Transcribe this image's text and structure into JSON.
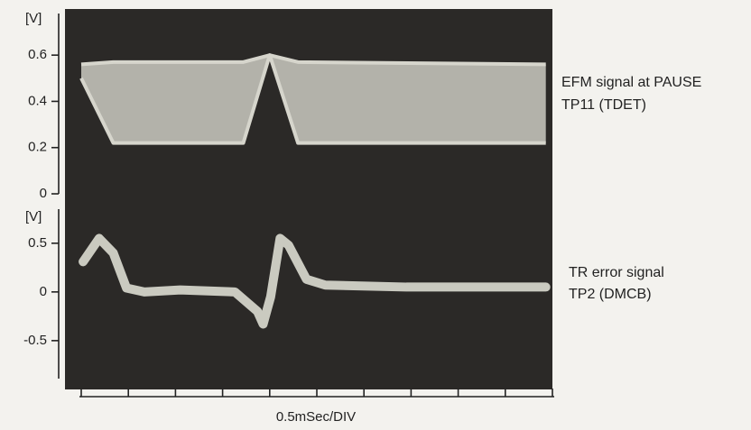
{
  "chart_data": [
    {
      "type": "band",
      "y_unit": "[V]",
      "annotations": [
        "EFM signal at PAUSE",
        "TP11 (TDET)"
      ],
      "xlim": [
        0,
        5
      ],
      "ylim": [
        0,
        0.78
      ],
      "yticks": [
        0,
        0.2,
        0.4,
        0.6
      ],
      "x": [
        0,
        0.34,
        1.72,
        2.0,
        2.3,
        4.93
      ],
      "series": [
        {
          "color": "#d6d5cc",
          "values": [
            0.56,
            0.57,
            0.57,
            0.6,
            0.57,
            0.56
          ]
        },
        {
          "color": "#d6d5cc",
          "values": [
            0.5,
            0.22,
            0.22,
            0.6,
            0.22,
            0.22
          ]
        }
      ]
    },
    {
      "type": "line",
      "y_unit": "[V]",
      "annotations": [
        "TR error signal",
        "TP2 (DMCB)"
      ],
      "xlabel": "0.5mSec/DIV",
      "xlim": [
        0,
        5
      ],
      "xticks": [
        0,
        0.5,
        1,
        1.5,
        2,
        2.5,
        3,
        3.5,
        4,
        4.5,
        5
      ],
      "ylim": [
        -0.89,
        0.85
      ],
      "yticks": [
        -0.5,
        0,
        0.5
      ],
      "x": [
        0.02,
        0.19,
        0.34,
        0.48,
        0.67,
        1.05,
        1.63,
        1.87,
        1.93,
        2.01,
        2.11,
        2.2,
        2.39,
        2.59,
        3.45,
        4.12,
        4.93
      ],
      "series": [
        {
          "color": "#dcdbd2",
          "values": [
            0.31,
            0.55,
            0.4,
            0.04,
            0,
            0.02,
            0,
            -0.2,
            -0.33,
            -0.05,
            0.55,
            0.48,
            0.13,
            0.07,
            0.05,
            0.05,
            0.05
          ]
        }
      ]
    }
  ]
}
